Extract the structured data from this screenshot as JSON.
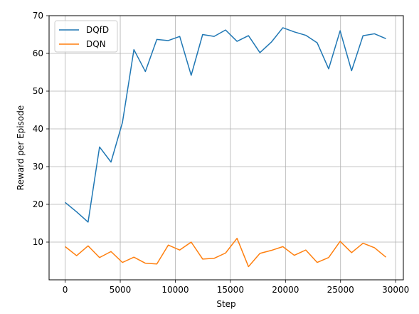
{
  "chart_data": {
    "type": "line",
    "xlabel": "Step",
    "ylabel": "Reward per Episode",
    "xlim": [
      -1460,
      30700
    ],
    "ylim": [
      0,
      70
    ],
    "xticks": [
      0,
      5000,
      10000,
      15000,
      20000,
      25000,
      30000
    ],
    "yticks": [
      10,
      20,
      30,
      40,
      50,
      60,
      70
    ],
    "grid": true,
    "legend_position": "top-left",
    "series": [
      {
        "name": "DQfD",
        "color": "#1f77b4",
        "x": [
          0,
          1040,
          2080,
          3120,
          4160,
          5200,
          6240,
          7280,
          8320,
          9360,
          10400,
          11440,
          12480,
          13520,
          14560,
          15600,
          16640,
          17680,
          18720,
          19760,
          20800,
          21840,
          22880,
          23920,
          24960,
          26000,
          27040,
          28080,
          29120
        ],
        "values": [
          20.5,
          18.0,
          15.3,
          35.2,
          31.2,
          41.7,
          61.0,
          55.2,
          63.7,
          63.4,
          64.5,
          54.2,
          65.0,
          64.5,
          66.2,
          63.2,
          64.7,
          60.2,
          63.0,
          66.8,
          65.7,
          64.8,
          62.8,
          55.9,
          66.0,
          55.4,
          64.7,
          65.2,
          63.9
        ]
      },
      {
        "name": "DQN",
        "color": "#ff7f0e",
        "x": [
          0,
          1040,
          2080,
          3120,
          4160,
          5200,
          6240,
          7280,
          8320,
          9360,
          10400,
          11440,
          12480,
          13520,
          14560,
          15600,
          16640,
          17680,
          18720,
          19760,
          20800,
          21840,
          22880,
          23920,
          24960,
          26000,
          27040,
          28080,
          29120
        ],
        "values": [
          8.8,
          6.4,
          9.0,
          5.9,
          7.5,
          4.6,
          6.0,
          4.4,
          4.2,
          9.2,
          7.9,
          10.0,
          5.5,
          5.7,
          7.1,
          11.0,
          3.5,
          7.0,
          7.8,
          8.8,
          6.5,
          7.9,
          4.6,
          5.9,
          10.2,
          7.2,
          9.7,
          8.5,
          6.0
        ]
      }
    ]
  }
}
